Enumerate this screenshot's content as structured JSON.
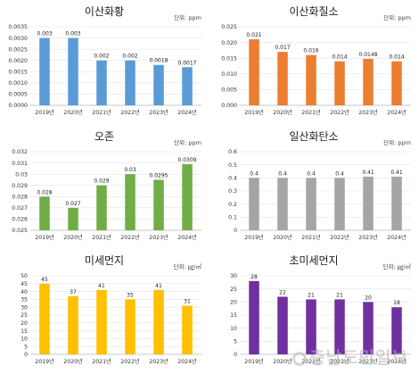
{
  "chart_data": [
    {
      "type": "bar",
      "title": "이산화황",
      "unit": "단위: ppm",
      "color": "#5b9bd5",
      "categories": [
        "2019년",
        "2020년",
        "2021년",
        "2022년",
        "2023년",
        "2024년"
      ],
      "values": [
        0.003,
        0.003,
        0.002,
        0.002,
        0.0018,
        0.0017
      ],
      "labels": [
        "0.003",
        "0.003",
        "0.002",
        "0.002",
        "0.0018",
        "0.0017"
      ],
      "yticks": [
        "0.0000",
        "0.0005",
        "0.0010",
        "0.0015",
        "0.0020",
        "0.0025",
        "0.0030",
        "0.0035"
      ],
      "ylim": [
        0,
        0.0035
      ]
    },
    {
      "type": "bar",
      "title": "이산화질소",
      "unit": "단위: ppm",
      "color": "#ed7d31",
      "categories": [
        "2019년",
        "2020년",
        "2021년",
        "2022년",
        "2023년",
        "2024년"
      ],
      "values": [
        0.021,
        0.017,
        0.016,
        0.014,
        0.0148,
        0.014
      ],
      "labels": [
        "0.021",
        "0.017",
        "0.016",
        "0.014",
        "0.0148",
        "0.014"
      ],
      "yticks": [
        "0.000",
        "0.005",
        "0.010",
        "0.015",
        "0.020",
        "0.025"
      ],
      "ylim": [
        0,
        0.025
      ]
    },
    {
      "type": "bar",
      "title": "오존",
      "unit": "단위: ppm",
      "color": "#70ad47",
      "categories": [
        "2019년",
        "2020년",
        "2021년",
        "2022년",
        "2023년",
        "2024년"
      ],
      "values": [
        0.028,
        0.027,
        0.029,
        0.03,
        0.0295,
        0.0309
      ],
      "labels": [
        "0.028",
        "0.027",
        "0.029",
        "0.03",
        "0.0295",
        "0.0309"
      ],
      "yticks": [
        "0.025",
        "0.026",
        "0.027",
        "0.028",
        "0.029",
        "0.03",
        "0.031",
        "0.032"
      ],
      "ylim": [
        0.025,
        0.032
      ]
    },
    {
      "type": "bar",
      "title": "일산화탄소",
      "unit": "단위: ppm",
      "color": "#a5a5a5",
      "categories": [
        "2019년",
        "2020년",
        "2021년",
        "2022년",
        "2023년",
        "2024년"
      ],
      "values": [
        0.4,
        0.4,
        0.4,
        0.4,
        0.41,
        0.41
      ],
      "labels": [
        "0.4",
        "0.4",
        "0.4",
        "0.4",
        "0.41",
        "0.41"
      ],
      "yticks": [
        "0",
        "0.1",
        "0.2",
        "0.3",
        "0.4",
        "0.5",
        "0.6"
      ],
      "ylim": [
        0,
        0.6
      ]
    },
    {
      "type": "bar",
      "title": "미세먼지",
      "unit": "단위: ㎍/㎥",
      "color": "#ffc000",
      "categories": [
        "2019년",
        "2020년",
        "2021년",
        "2022년",
        "2023년",
        "2024년"
      ],
      "values": [
        45,
        37,
        41,
        35,
        41,
        31
      ],
      "labels": [
        "45",
        "37",
        "41",
        "35",
        "41",
        "31"
      ],
      "yticks": [
        "0",
        "5",
        "10",
        "15",
        "20",
        "25",
        "30",
        "35",
        "40",
        "45",
        "50"
      ],
      "ylim": [
        0,
        50
      ]
    },
    {
      "type": "bar",
      "title": "초미세먼지",
      "unit": "단위: ㎍/㎥",
      "color": "#7030a0",
      "categories": [
        "2019년",
        "2020년",
        "2021년",
        "2022년",
        "2023년",
        "2024년"
      ],
      "values": [
        28,
        22,
        21,
        21,
        20,
        18
      ],
      "labels": [
        "28",
        "22",
        "21",
        "21",
        "20",
        "18"
      ],
      "yticks": [
        "0",
        "5",
        "10",
        "15",
        "20",
        "25",
        "30"
      ],
      "ylim": [
        0,
        30
      ]
    }
  ],
  "watermark": "충남도민일보"
}
